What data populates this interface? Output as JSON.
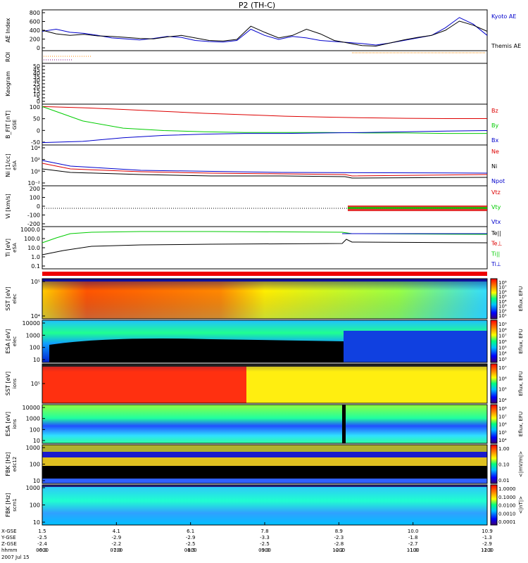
{
  "title": "P2 (TH-C)",
  "date": "2007 Jul 15",
  "colors": {
    "blue": "#0000cc",
    "red": "#dd0000",
    "green": "#00cc00",
    "black": "#000000",
    "orange": "#ff8800"
  },
  "chart_data": {
    "type": "line",
    "x_axis": {
      "time_ticks": [
        "0600",
        "0700",
        "0800",
        "0900",
        "1000",
        "1100",
        "1200"
      ],
      "coord_rows": [
        {
          "label": "X-GSE",
          "values": [
            "1.5",
            "4.1",
            "6.1",
            "7.8",
            "8.9",
            "10.0",
            "10.9"
          ]
        },
        {
          "label": "Y-GSE",
          "values": [
            "-2.5",
            "-2.9",
            "-2.9",
            "-3.3",
            "-2.3",
            "-1.8",
            "-1.3"
          ]
        },
        {
          "label": "Z-GSE",
          "values": [
            "-2.4",
            "-2.2",
            "-2.5",
            "-2.5",
            "-2.8",
            "-2.7",
            "-2.9"
          ]
        },
        {
          "label": "",
          "values": [
            "-0.3",
            "-1.0",
            "-1.5",
            "-3.0",
            "-2.2",
            "-1.8",
            "-1.3"
          ]
        }
      ],
      "hhmm_label": "hhmm"
    },
    "panels": [
      {
        "id": "ae",
        "ylabel": "AE Index",
        "ticks": [
          "800",
          "600",
          "400",
          "200",
          "0"
        ],
        "legend": [
          "Kyoto AE",
          "Themis AE"
        ],
        "series": [
          {
            "name": "Kyoto AE",
            "color": "blue",
            "values": [
              380,
              420,
              360,
              340,
              300,
              250,
              230,
              210,
              240,
              280,
              260,
              200,
              180,
              170,
              200,
              420,
              300,
              220,
              280,
              250,
              200,
              180,
              160,
              140,
              110,
              150,
              200,
              250,
              300,
              450,
              650,
              520,
              300
            ]
          },
          {
            "name": "Themis AE",
            "color": "black",
            "values": [
              400,
              330,
              300,
              320,
              290,
              280,
              260,
              240,
              230,
              270,
              300,
              250,
              200,
              190,
              220,
              480,
              360,
              250,
              300,
              420,
              330,
              200,
              150,
              100,
              90,
              150,
              210,
              260,
              300,
              400,
              580,
              500,
              380
            ]
          }
        ]
      },
      {
        "id": "roi",
        "ylabel": "ROI",
        "ticks": []
      },
      {
        "id": "keogram",
        "ylabel": "Keogram",
        "ticks": [
          "50",
          "45",
          "40",
          "35",
          "30",
          "25",
          "20",
          "15",
          "10",
          "5",
          "0"
        ]
      },
      {
        "id": "bfit",
        "ylabel": "B_FIT [nT]",
        "ylabel2": "GSE",
        "ticks": [
          "100",
          "50",
          "0",
          "-50"
        ],
        "legend": [
          "Bz",
          "By",
          "Bx"
        ],
        "series": [
          {
            "name": "Bz",
            "color": "red",
            "values": [
              100,
              95,
              88,
              80,
              72,
              66,
              60,
              56,
              53,
              51,
              50,
              50
            ]
          },
          {
            "name": "By",
            "color": "green",
            "values": [
              100,
              40,
              10,
              0,
              -5,
              -8,
              -8,
              -8,
              -10,
              -10,
              -12,
              -12
            ]
          },
          {
            "name": "Bx",
            "color": "blue",
            "values": [
              -50,
              -45,
              -30,
              -20,
              -15,
              -12,
              -12,
              -10,
              -8,
              -5,
              -2,
              0
            ]
          }
        ]
      },
      {
        "id": "density",
        "ylabel": "Ni [1/cc]",
        "ylabel2": "eSA",
        "ticks": [
          "10⁴",
          "10²",
          "10⁰",
          "10⁻²"
        ],
        "legend": [
          "Ne",
          "Ni",
          "Npot"
        ]
      },
      {
        "id": "velocity",
        "ylabel": "Vi [km/s]",
        "ticks": [
          "200",
          "100",
          "0",
          "-100",
          "-200"
        ],
        "legend": [
          "Vtz",
          "Vty",
          "Vtx"
        ]
      },
      {
        "id": "temperature",
        "ylabel": "Ti [eV]",
        "ylabel2": "eSA",
        "ticks": [
          "1000.0",
          "100.0",
          "10.0",
          "1.0",
          "0.1"
        ],
        "legend": [
          "Te||",
          "Te⊥",
          "Ti||",
          "Ti⊥"
        ]
      },
      {
        "id": "sst_e",
        "ylabel": "SST [eV]",
        "ylabel2": "elec",
        "ticks": [
          "10⁵",
          "10⁴"
        ],
        "colorbar": {
          "label": "Eflux, EFU",
          "ticks": [
            "10⁸",
            "10⁷",
            "10⁶",
            "10⁵",
            "10⁴",
            "10³",
            "10²",
            "10¹"
          ]
        }
      },
      {
        "id": "esa_e",
        "ylabel": "ESA [eV]",
        "ylabel2": "elec",
        "ticks": [
          "10000",
          "1000",
          "100",
          "10"
        ],
        "colorbar": {
          "label": "Eflux, EFU",
          "ticks": [
            "10⁹",
            "10⁸",
            "10⁷",
            "10⁶",
            "10⁵",
            "10⁴",
            "10³"
          ]
        }
      },
      {
        "id": "sst_i",
        "ylabel": "SST [eV]",
        "ylabel2": "ions",
        "ticks": [
          "10⁵"
        ],
        "colorbar": {
          "label": "Eflux, EFU",
          "ticks": [
            "10⁷",
            "10⁶",
            "10⁵",
            "10⁴"
          ]
        }
      },
      {
        "id": "esa_i",
        "ylabel": "ESA [eV]",
        "ylabel2": "ions",
        "ticks": [
          "10000",
          "1000",
          "100",
          "10"
        ],
        "colorbar": {
          "label": "Eflux, EFU",
          "ticks": [
            "10⁸",
            "10⁷",
            "10⁶",
            "10⁵",
            "10⁴"
          ]
        }
      },
      {
        "id": "fbk_e",
        "ylabel": "FBK [Hz]",
        "ylabel2": "edc12",
        "ticks": [
          "1000",
          "100",
          "10"
        ],
        "colorbar": {
          "label": "<|mV/m|>",
          "ticks": [
            "1.00",
            "0.10",
            "0.01"
          ]
        }
      },
      {
        "id": "fbk_b",
        "ylabel": "FBK [Hz]",
        "ylabel2": "scm1",
        "ticks": [
          "1000",
          "100",
          "10"
        ],
        "colorbar": {
          "label": "<|nT|>",
          "ticks": [
            "1.0000",
            "0.1000",
            "0.0100",
            "0.0010",
            "0.0001"
          ]
        }
      }
    ]
  }
}
